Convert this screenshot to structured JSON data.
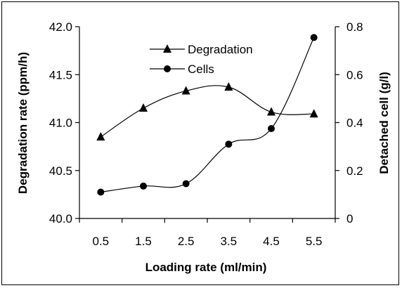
{
  "chart_data": {
    "type": "line",
    "xlabel": "Loading rate (ml/min)",
    "ylabel_left": "Degradation rate (ppm/h)",
    "ylabel_right": "Detached cell (g/l)",
    "x_ticks": [
      "0.5",
      "1.5",
      "2.5",
      "3.5",
      "4.5",
      "5.5"
    ],
    "y_left_ticks": [
      "40.0",
      "40.5",
      "41.0",
      "41.5",
      "42.0"
    ],
    "y_right_ticks": [
      "0",
      "0.2",
      "0.4",
      "0.6",
      "0.8"
    ],
    "ylim_left": [
      40.0,
      42.0
    ],
    "ylim_right": [
      0,
      0.8
    ],
    "xlim": [
      0,
      6
    ],
    "legend_position": "top-center",
    "grid": false,
    "series": [
      {
        "name": "Degradation",
        "axis": "left",
        "marker": "triangle",
        "x": [
          0.5,
          1.5,
          2.5,
          3.5,
          4.5,
          5.5
        ],
        "values": [
          40.85,
          41.15,
          41.33,
          41.37,
          41.11,
          41.09
        ]
      },
      {
        "name": "Cells",
        "axis": "right",
        "marker": "circle",
        "x": [
          0.5,
          1.5,
          2.5,
          3.5,
          4.5,
          5.5
        ],
        "values": [
          0.11,
          0.135,
          0.145,
          0.31,
          0.375,
          0.755
        ]
      }
    ]
  }
}
